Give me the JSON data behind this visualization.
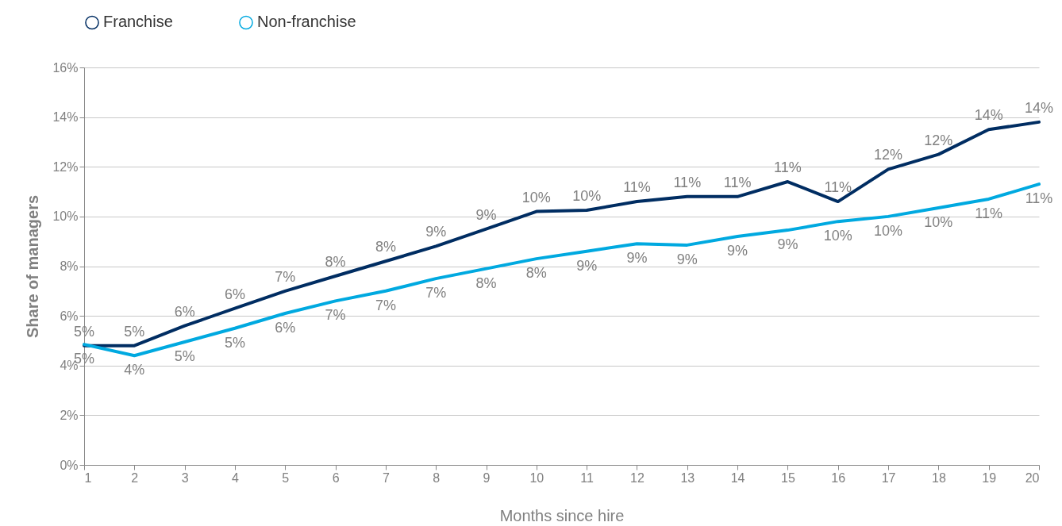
{
  "chart_data": {
    "type": "line",
    "xlabel": "Months since hire",
    "ylabel": "Share of managers",
    "x": [
      1,
      2,
      3,
      4,
      5,
      6,
      7,
      8,
      9,
      10,
      11,
      12,
      13,
      14,
      15,
      16,
      17,
      18,
      19,
      20
    ],
    "xlim": [
      1,
      20
    ],
    "xticks": [
      1,
      2,
      3,
      4,
      5,
      6,
      7,
      8,
      9,
      10,
      11,
      12,
      13,
      14,
      15,
      16,
      17,
      18,
      19,
      20
    ],
    "ylim": [
      0,
      16
    ],
    "yticks": [
      {
        "value": 0,
        "label": "0%"
      },
      {
        "value": 2,
        "label": "2%"
      },
      {
        "value": 4,
        "label": "4%"
      },
      {
        "value": 6,
        "label": "6%"
      },
      {
        "value": 8,
        "label": "8%"
      },
      {
        "value": 10,
        "label": "10%"
      },
      {
        "value": 12,
        "label": "12%"
      },
      {
        "value": 14,
        "label": "14%"
      },
      {
        "value": 16,
        "label": "16%"
      }
    ],
    "grid": "y",
    "legend": "top left",
    "line_style": "solid",
    "series": [
      {
        "name": "Franchise",
        "color": "#002d62",
        "values": [
          4.8,
          4.8,
          5.6,
          6.3,
          7.0,
          7.6,
          8.2,
          8.8,
          9.5,
          10.2,
          10.25,
          10.6,
          10.8,
          10.8,
          11.4,
          10.6,
          11.9,
          12.5,
          13.5,
          13.8
        ],
        "value_labels": [
          "5%",
          "5%",
          "6%",
          "6%",
          "7%",
          "8%",
          "8%",
          "9%",
          "9%",
          "10%",
          "10%",
          "11%",
          "11%",
          "11%",
          "11%",
          "11%",
          "12%",
          "12%",
          "14%",
          "14%"
        ]
      },
      {
        "name": "Non-franchise",
        "color": "#00a9e0",
        "values": [
          4.85,
          4.4,
          4.95,
          5.5,
          6.1,
          6.6,
          7.0,
          7.5,
          7.9,
          8.3,
          8.6,
          8.9,
          8.85,
          9.2,
          9.45,
          9.8,
          10.0,
          10.35,
          10.7,
          11.3
        ],
        "value_labels": [
          "5%",
          "4%",
          "5%",
          "5%",
          "6%",
          "7%",
          "7%",
          "7%",
          "8%",
          "8%",
          "9%",
          "9%",
          "9%",
          "9%",
          "9%",
          "10%",
          "10%",
          "10%",
          "11%",
          "11%"
        ]
      }
    ]
  }
}
